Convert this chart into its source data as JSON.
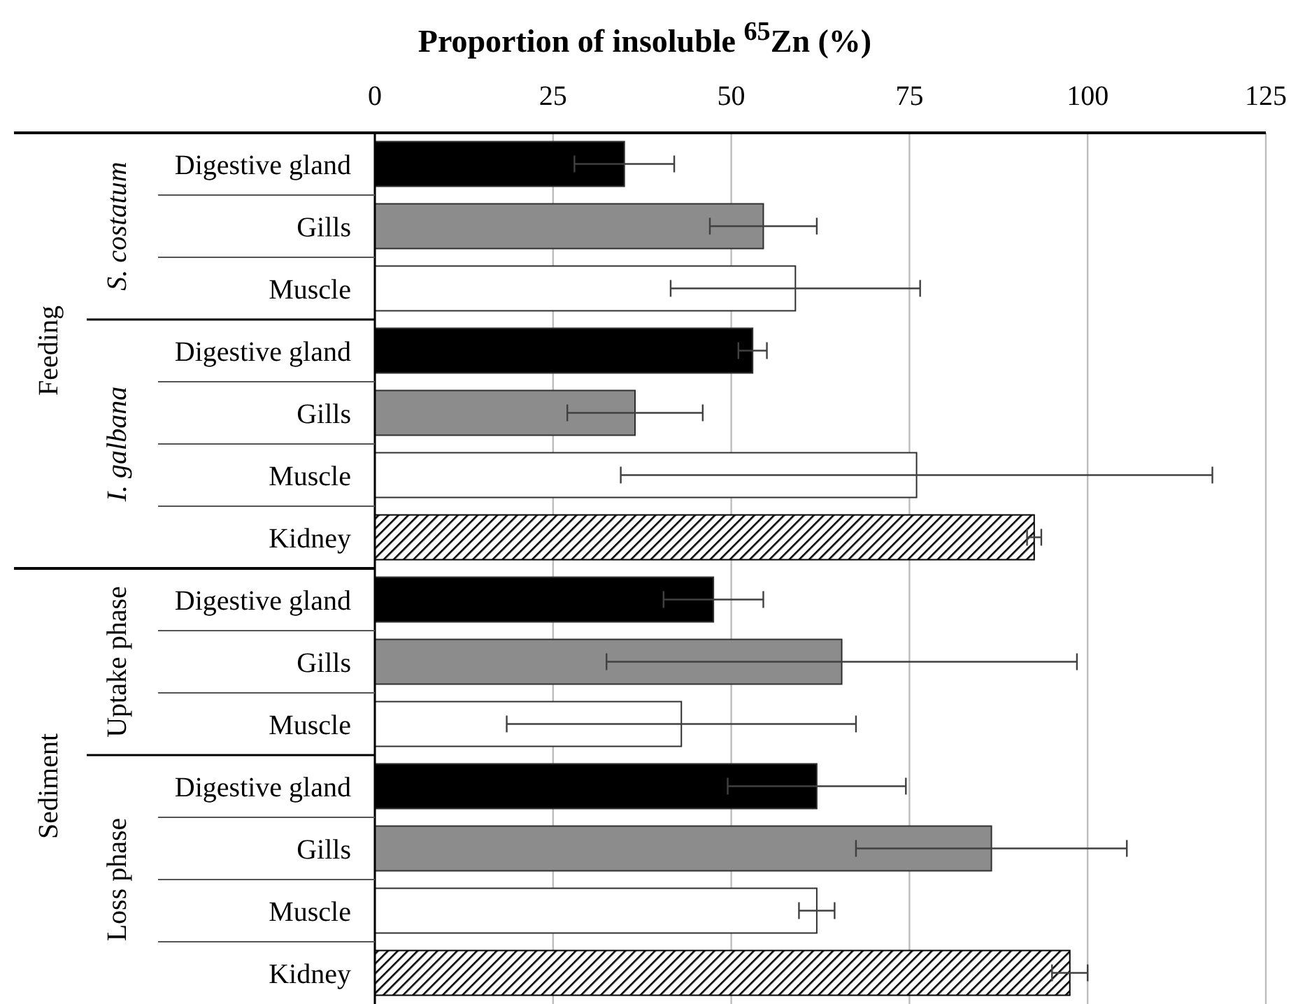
{
  "chart_data": {
    "type": "bar",
    "orientation": "horizontal",
    "title": "Proportion of insoluble $^{65}$Zn (%)",
    "categories": [
      "Digestive gland",
      "Gills",
      "Muscle",
      "Digestive gland",
      "Gills",
      "Muscle",
      "Kidney",
      "Digestive gland",
      "Gills",
      "Muscle",
      "Digestive gland",
      "Gills",
      "Muscle",
      "Kidney"
    ],
    "series": [
      {
        "values": [
          35,
          54.5,
          59,
          53,
          36.5,
          76,
          null,
          47.5,
          65.5,
          43,
          62,
          86.5,
          62,
          null
        ],
        "colors": [
          "#000000",
          "#8c8c8c",
          "#ffffff",
          "#000000",
          "#8c8c8c",
          "#ffffff",
          null,
          "#000000",
          "#8c8c8c",
          "#ffffff",
          "#000000",
          "#8c8c8c",
          "#ffffff",
          null
        ],
        "errors": [
          7,
          7.5,
          17.5,
          2,
          9.5,
          41.5,
          null,
          7,
          33,
          24.5,
          12.5,
          19,
          2.5,
          null
        ]
      },
      {
        "values": [
          null,
          null,
          null,
          null,
          null,
          null,
          92.5,
          null,
          null,
          null,
          null,
          null,
          null,
          97.5
        ],
        "color": "#000000",
        "errors": [
          null,
          null,
          null,
          null,
          null,
          null,
          1,
          null,
          null,
          null,
          null,
          null,
          null,
          2.5
        ]
      }
    ],
    "xlim": [
      0,
      125
    ],
    "xticks": [
      0,
      25,
      50,
      75,
      100,
      125
    ],
    "grid": "x",
    "annotations": [
      "Feeding",
      "S. costatum",
      "I. galbana",
      "Sediment",
      "Uptake phase",
      "Loss phase"
    ]
  }
}
